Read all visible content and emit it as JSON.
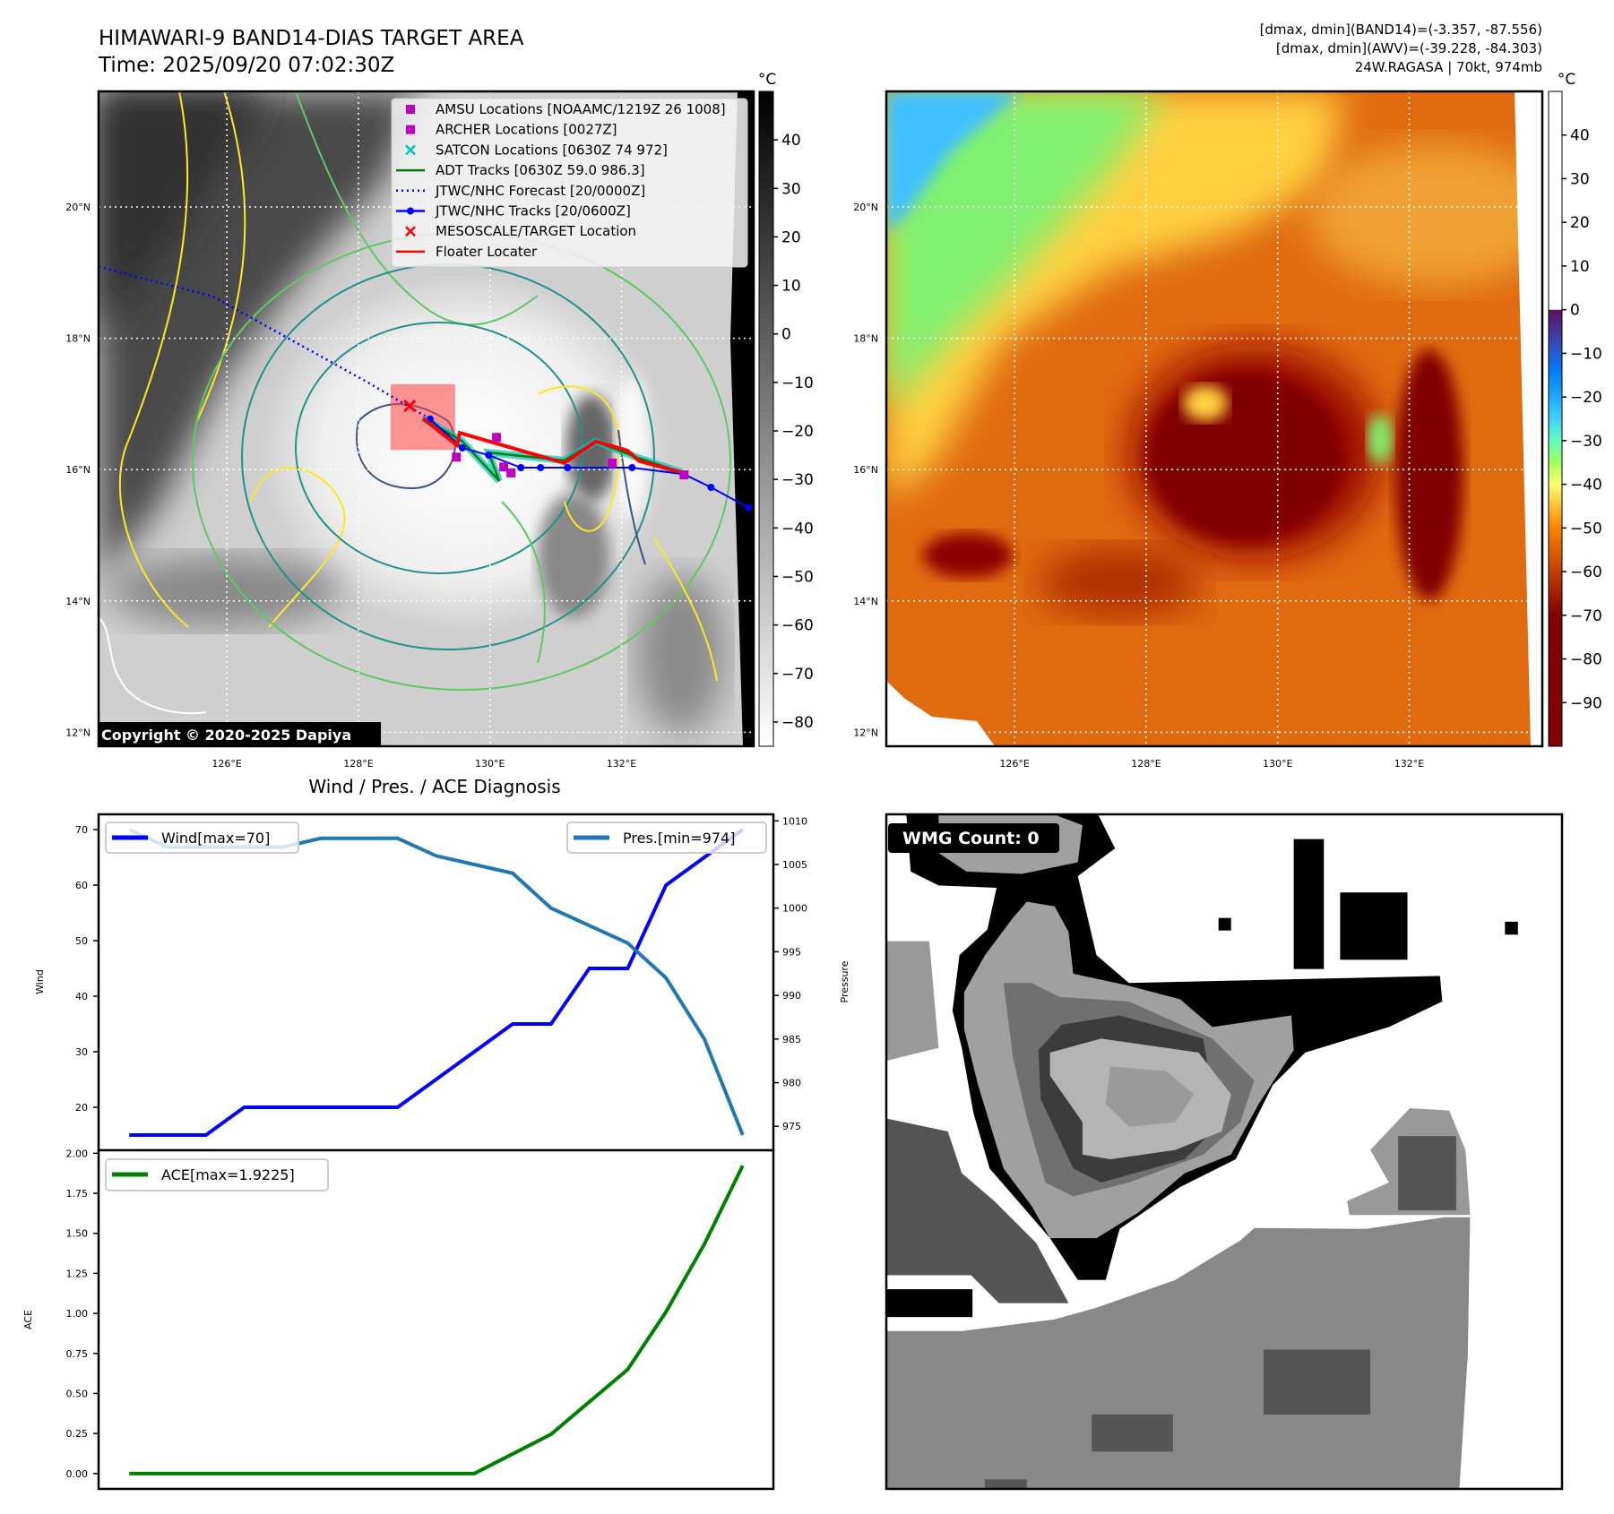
{
  "header": {
    "title_line1": "HIMAWARI-9 BAND14-DIAS TARGET AREA",
    "title_line2": "Time: 2025/09/20 07:02:30Z",
    "info_line1": "[dmax, dmin](BAND14)=(-3.357, -87.556)",
    "info_line2": "[dmax, dmin](AWV)=(-39.228, -84.303)",
    "info_line3": "24W.RAGASA | 70kt, 974mb"
  },
  "maps": {
    "lon_ticks": [
      126,
      128,
      130,
      132
    ],
    "lon_tick_labels": [
      "126°E",
      "128°E",
      "130°E",
      "132°E"
    ],
    "lat_ticks": [
      12,
      14,
      16,
      18,
      20
    ],
    "lat_tick_labels": [
      "12°N",
      "14°N",
      "16°N",
      "18°N",
      "20°N"
    ],
    "extent": {
      "lon": [
        124.05,
        134.0
      ],
      "lat": [
        11.78,
        21.76
      ]
    },
    "copyright": "Copyright © 2020-2025 Dapiya",
    "legend": [
      {
        "label": "AMSU Locations [NOAAMC/1219Z 26 1008]",
        "color": "#c000c0",
        "marker": "square"
      },
      {
        "label": "ARCHER Locations [0027Z]",
        "color": "#c000c0",
        "marker": "square"
      },
      {
        "label": "SATCON Locations [0630Z 74 972]",
        "color": "#00c0c0",
        "marker": "x"
      },
      {
        "label": "ADT Tracks [0630Z 59.0 986.3]",
        "color": "#008000",
        "marker": "line"
      },
      {
        "label": "JTWC/NHC Forecast [20/0000Z]",
        "color": "#0000ff",
        "marker": "dotted"
      },
      {
        "label": "JTWC/NHC Tracks [20/0600Z]",
        "color": "#0000ff",
        "marker": "line-dot"
      },
      {
        "label": "MESOSCALE/TARGET Location",
        "color": "#ff0000",
        "marker": "x"
      },
      {
        "label": "Floater Locater",
        "color": "#ff0000",
        "marker": "line"
      }
    ],
    "jtwc_forecast": [
      [
        124.05,
        19.09
      ],
      [
        125.78,
        18.64
      ],
      [
        128.14,
        17.33
      ],
      [
        129.09,
        16.77
      ]
    ],
    "jtwc_track": [
      [
        129.09,
        16.77
      ],
      [
        129.58,
        16.33
      ],
      [
        129.98,
        16.22
      ],
      [
        130.47,
        16.03
      ],
      [
        130.77,
        16.03
      ],
      [
        131.18,
        16.03
      ],
      [
        132.16,
        16.03
      ],
      [
        132.95,
        15.93
      ],
      [
        133.36,
        15.73
      ],
      [
        133.93,
        15.42
      ]
    ],
    "adt_track": [
      [
        128.98,
        16.78
      ],
      [
        129.57,
        16.44
      ],
      [
        130.14,
        15.83
      ],
      [
        129.98,
        16.26
      ],
      [
        131.13,
        16.14
      ],
      [
        131.61,
        16.43
      ],
      [
        132.22,
        16.19
      ],
      [
        132.91,
        15.96
      ]
    ],
    "floater_track": [
      [
        128.98,
        16.78
      ],
      [
        129.5,
        16.37
      ],
      [
        129.54,
        16.56
      ],
      [
        131.13,
        16.1
      ],
      [
        131.61,
        16.43
      ],
      [
        132.09,
        16.29
      ],
      [
        132.27,
        16.13
      ],
      [
        132.91,
        15.96
      ]
    ],
    "amsu_points": [
      [
        130.1,
        16.49
      ],
      [
        129.49,
        16.19
      ],
      [
        130.21,
        16.04
      ],
      [
        130.32,
        15.95
      ],
      [
        131.86,
        16.1
      ],
      [
        132.95,
        15.92
      ]
    ],
    "target": [
      128.78,
      16.97
    ],
    "target_box": {
      "lon": [
        128.49,
        129.47
      ],
      "lat": [
        16.3,
        17.3
      ]
    },
    "colorbar_left": {
      "unit": "°C",
      "range": [
        -85,
        50
      ],
      "ticks": [
        40,
        30,
        20,
        10,
        0,
        -10,
        -20,
        -30,
        -40,
        -50,
        -60,
        -70,
        -80
      ],
      "tick_labels": [
        "40",
        "30",
        "20",
        "10",
        "0",
        "−10",
        "−20",
        "−30",
        "−40",
        "−50",
        "−60",
        "−70",
        "−80"
      ]
    },
    "colorbar_right": {
      "unit": "°C",
      "range": [
        -100,
        50
      ],
      "ticks": [
        40,
        30,
        20,
        10,
        0,
        -10,
        -20,
        -30,
        -40,
        -50,
        -60,
        -70,
        -80,
        -90
      ],
      "tick_labels": [
        "40",
        "30",
        "20",
        "10",
        "0",
        "−10",
        "−20",
        "−30",
        "−40",
        "−50",
        "−60",
        "−70",
        "−80",
        "−90"
      ]
    }
  },
  "wmg": {
    "label": "WMG Count: 0"
  },
  "chart_data": [
    {
      "type": "line",
      "title": "Wind / Pres. / ACE Diagnosis",
      "x": [
        0,
        1,
        2,
        3,
        4,
        5,
        6,
        7,
        8,
        9,
        10,
        11,
        12,
        13,
        14,
        15,
        16
      ],
      "ylabel": "Wind",
      "ylabel_right": "Pressure",
      "ylim": [
        12.25,
        72.75
      ],
      "ylim_right": [
        972.25,
        1010.75
      ],
      "yticks": [
        20,
        30,
        40,
        50,
        60,
        70
      ],
      "yticks_right": [
        975,
        980,
        985,
        990,
        995,
        1000,
        1005,
        1010
      ],
      "series": [
        {
          "name": "Wind[max=70]",
          "axis": "left",
          "color": "#0000ff",
          "values": [
            15,
            15,
            15,
            20,
            20,
            20,
            20,
            20,
            25,
            30,
            35,
            35,
            45,
            45,
            60,
            65,
            70
          ],
          "legend": "upper-left"
        },
        {
          "name": "Pres.[min=974]",
          "axis": "right",
          "color": "#1f77b4",
          "values": [
            1009,
            1007,
            1007,
            1007,
            1007,
            1008,
            1008,
            1008,
            1006,
            1005,
            1004,
            1000,
            998,
            996,
            992,
            985,
            974
          ],
          "legend": "upper-right"
        }
      ]
    },
    {
      "type": "line",
      "x": [
        0,
        1,
        2,
        3,
        4,
        5,
        6,
        7,
        8,
        9,
        10,
        11,
        12,
        13,
        14,
        15,
        16
      ],
      "ylabel": "ACE",
      "ylim": [
        -0.0961,
        2.0186
      ],
      "yticks": [
        0,
        0.25,
        0.5,
        0.75,
        1,
        1.25,
        1.5,
        1.75,
        2
      ],
      "ytick_labels": [
        "0.00",
        "0.25",
        "0.50",
        "0.75",
        "1.00",
        "1.25",
        "1.50",
        "1.75",
        "2.00"
      ],
      "series": [
        {
          "name": "ACE[max=1.9225]",
          "color": "#008000",
          "values": [
            0,
            0,
            0,
            0,
            0,
            0,
            0,
            0,
            0,
            0,
            0.1225,
            0.245,
            0.4475,
            0.65,
            1.01,
            1.4325,
            1.9225
          ],
          "legend": "upper-left"
        }
      ]
    }
  ]
}
